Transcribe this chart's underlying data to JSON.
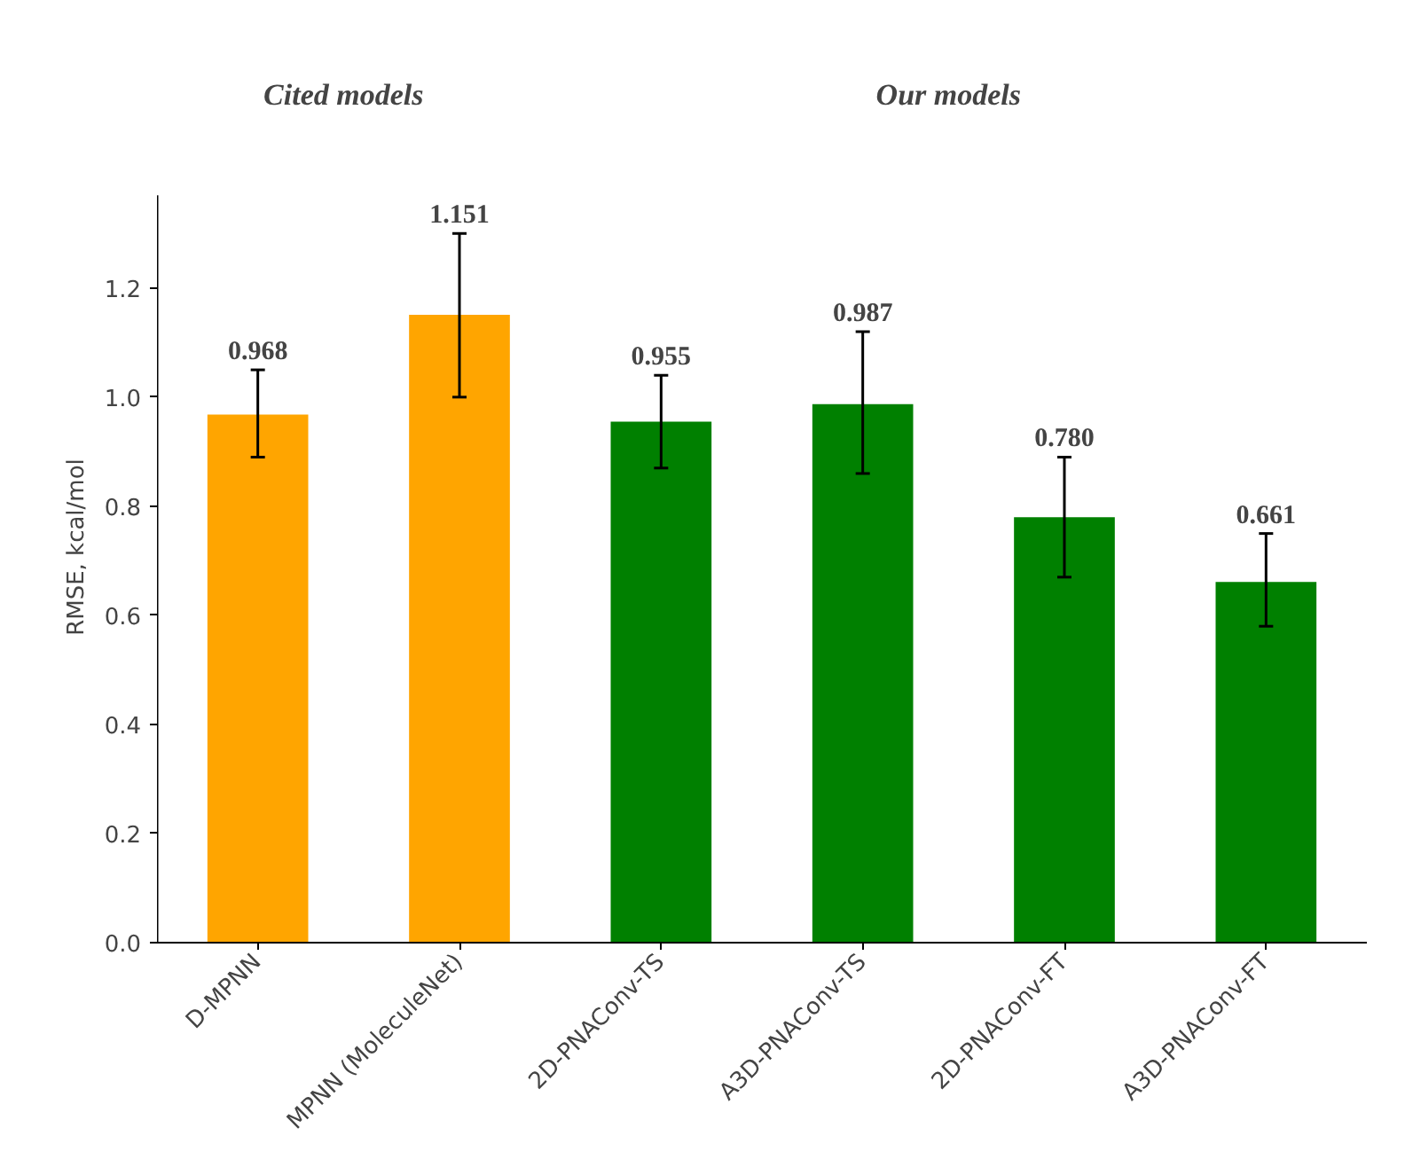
{
  "chart_data": {
    "type": "bar",
    "ylabel": "RMSE, kcal/mol",
    "categories": [
      "D-MPNN",
      "MPNN (MoleculeNet)",
      "2D-PNAConv-TS",
      "A3D-PNAConv-TS",
      "2D-PNAConv-FT",
      "A3D-PNAConv-FT"
    ],
    "values": [
      0.968,
      1.151,
      0.955,
      0.987,
      0.78,
      0.661
    ],
    "colors": [
      "#ffa500",
      "#ffa500",
      "#008000",
      "#008000",
      "#008000",
      "#008000"
    ],
    "errors": [
      [
        0.89,
        1.05
      ],
      [
        1.0,
        1.3
      ],
      [
        0.87,
        1.04
      ],
      [
        0.86,
        1.12
      ],
      [
        0.67,
        0.89
      ],
      [
        0.58,
        0.75
      ]
    ],
    "value_labels": [
      "0.968",
      "1.151",
      "0.955",
      "0.987",
      "0.780",
      "0.661"
    ],
    "annotations": [
      "Cited models",
      "Our models"
    ],
    "ylim": [
      0,
      1.37
    ],
    "yticks": [
      {
        "value": 0,
        "label": "0.0"
      },
      0.2,
      0.4,
      0.6,
      0.8,
      {
        "value": 1,
        "label": "1.0"
      },
      1.2
    ],
    "grid": false
  }
}
